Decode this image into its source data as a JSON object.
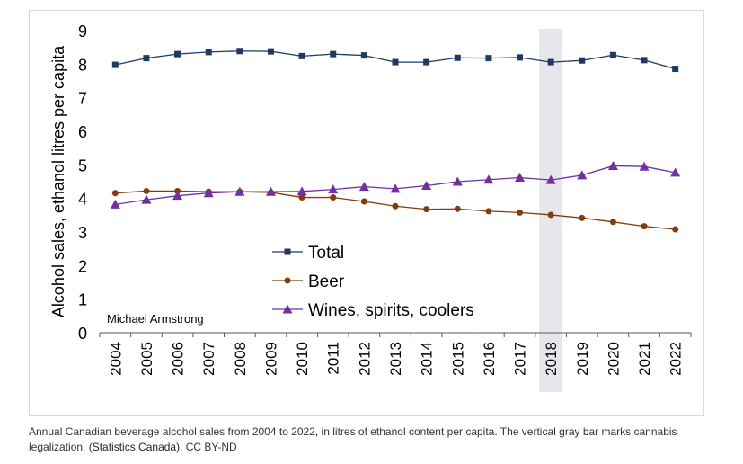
{
  "chart_data": {
    "type": "line",
    "title": "",
    "xlabel": "",
    "ylabel": "Alcohol sales, ethanol litres per capita",
    "ylim": [
      0,
      9
    ],
    "yticks": [
      0,
      1,
      2,
      3,
      4,
      5,
      6,
      7,
      8,
      9
    ],
    "grid": false,
    "legend_position": "lower-center",
    "categories": [
      "2004",
      "2005",
      "2006",
      "2007",
      "2008",
      "2009",
      "2010",
      "2011",
      "2012",
      "2013",
      "2014",
      "2015",
      "2016",
      "2017",
      "2018",
      "2019",
      "2020",
      "2021",
      "2022"
    ],
    "highlight_category": "2018",
    "series": [
      {
        "name": "Total",
        "marker": "square",
        "color": "#1f3864",
        "values": [
          7.98,
          8.18,
          8.3,
          8.36,
          8.39,
          8.38,
          8.24,
          8.3,
          8.26,
          8.06,
          8.06,
          8.19,
          8.18,
          8.2,
          8.06,
          8.11,
          8.27,
          8.12,
          7.86
        ]
      },
      {
        "name": "Beer",
        "marker": "circle",
        "color": "#843c0c",
        "values": [
          4.16,
          4.22,
          4.22,
          4.2,
          4.2,
          4.18,
          4.03,
          4.03,
          3.91,
          3.77,
          3.68,
          3.69,
          3.62,
          3.58,
          3.51,
          3.42,
          3.3,
          3.17,
          3.08
        ]
      },
      {
        "name": "Wines, spirits, coolers",
        "marker": "triangle",
        "color": "#7030a0",
        "values": [
          3.82,
          3.96,
          4.08,
          4.16,
          4.2,
          4.2,
          4.21,
          4.27,
          4.35,
          4.29,
          4.38,
          4.5,
          4.56,
          4.62,
          4.55,
          4.69,
          4.97,
          4.95,
          4.77
        ]
      }
    ],
    "annotation": "Michael Armstrong",
    "colors": {
      "axis": "#595959",
      "highlight_bar": "#e7e6ec",
      "text": "#000000"
    }
  },
  "caption": {
    "text": "Annual Canadian beverage alcohol sales from 2004 to 2022, in litres of ethanol content per capita. The vertical gray bar marks cannabis legalization.",
    "source_link": "(Statistics Canada)",
    "license": ", CC BY-ND"
  }
}
